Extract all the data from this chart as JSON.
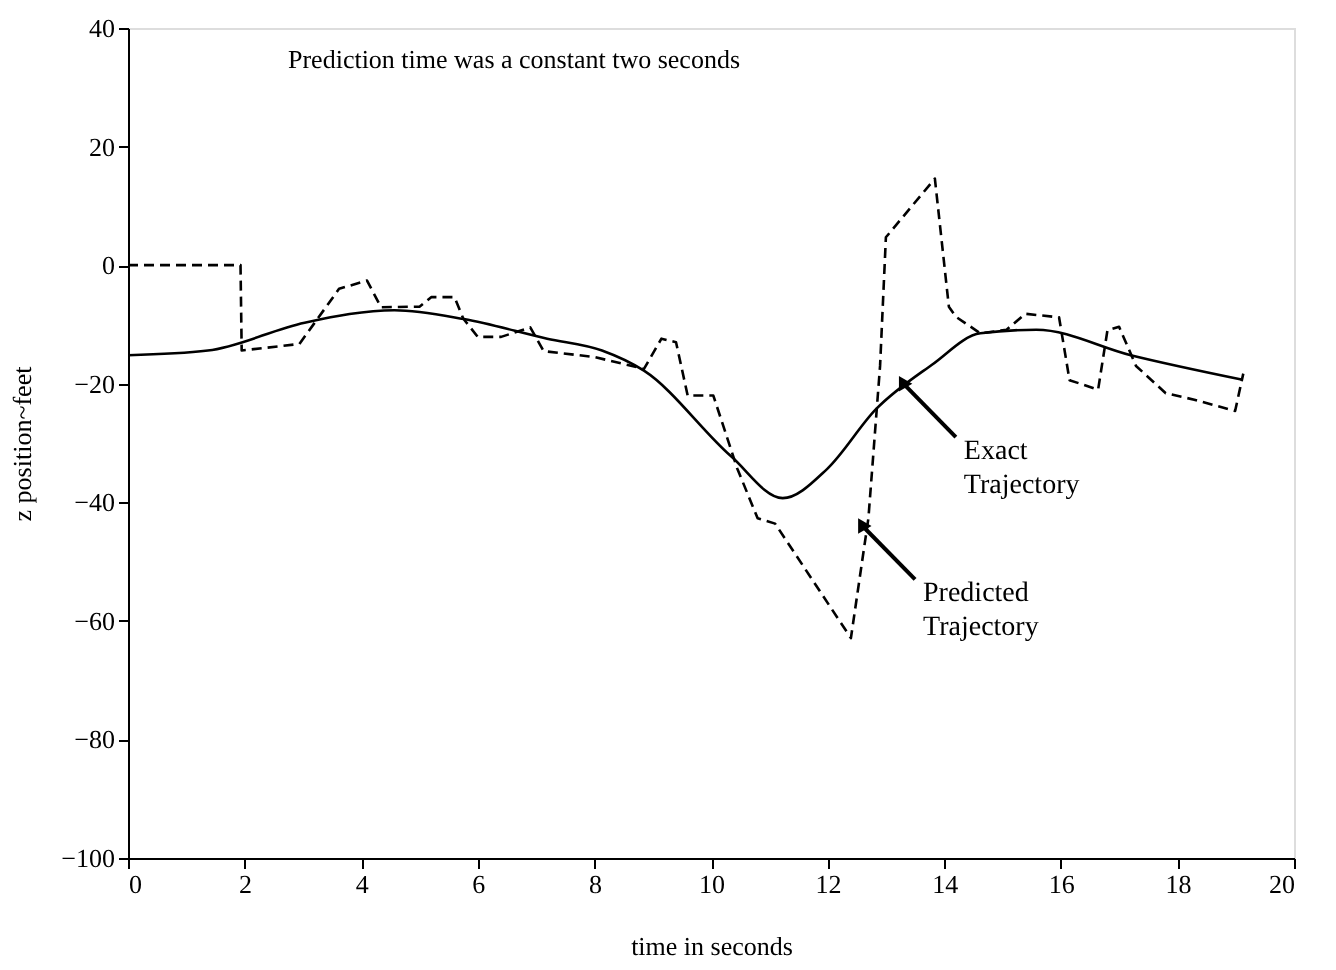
{
  "chart_data": {
    "type": "line",
    "xlabel": "time in seconds",
    "ylabel": "z position~feet",
    "xlim": [
      0,
      20
    ],
    "xticks": [
      0,
      2,
      4,
      6,
      8,
      10,
      12,
      14,
      16,
      18,
      20
    ],
    "ylim": [
      -100,
      40
    ],
    "yticks": [
      -100,
      -80,
      -60,
      -40,
      -20,
      0,
      20,
      40
    ],
    "grid": false,
    "marker": "none",
    "annotations": [
      "Prediction time was a constant two seconds",
      {
        "text": "Exact Trajectory",
        "x": 13.3,
        "y": -20
      },
      {
        "text": "Predicted Trajectory",
        "x": 12.6,
        "y": -44
      }
    ],
    "series": [
      {
        "color": "#000000",
        "line_style": "solid",
        "x": [
          0,
          1.37,
          3.03,
          4.57,
          5.76,
          7.19,
          8.13,
          8.85,
          10.34,
          11.23,
          11.99,
          12.83,
          13.79,
          14.62,
          15.58,
          17.2,
          19.1
        ],
        "values": [
          -15.2,
          -14.4,
          -9.7,
          -7.6,
          -9.1,
          -12.4,
          -14.4,
          -17.8,
          -32.2,
          -39.3,
          -34.4,
          -24.3,
          -16.8,
          -11.5,
          -10.9,
          -15.2,
          -19.3
        ]
      },
      {
        "color": "#000000",
        "line_style": "dashed",
        "x": [
          0,
          1.93,
          1.95,
          2.94,
          3.62,
          4.1,
          4.34,
          5.0,
          5.2,
          5.6,
          5.75,
          6.0,
          6.4,
          6.9,
          7.13,
          8.0,
          8.85,
          9.15,
          9.4,
          9.6,
          10.04,
          10.45,
          10.8,
          11.1,
          12.4,
          12.7,
          12.9,
          13.0,
          13.84,
          14.08,
          14.2,
          14.62,
          15.07,
          15.39,
          15.97,
          16.15,
          16.64,
          16.8,
          17.0,
          17.29,
          17.8,
          18.29,
          18.99,
          19.13
        ],
        "values": [
          0,
          0,
          -14.4,
          -13.3,
          -4,
          -2.6,
          -7.1,
          -7,
          -5.4,
          -5.4,
          -9,
          -12.1,
          -12.1,
          -10.5,
          -14.5,
          -15.5,
          -17.5,
          -12.4,
          -13,
          -22,
          -22,
          -34.3,
          -42.7,
          -43.6,
          -62.9,
          -42.7,
          -17,
          4.7,
          14.6,
          -7,
          -8.7,
          -11.5,
          -10.9,
          -8.2,
          -8.8,
          -19.4,
          -21,
          -11,
          -10.4,
          -17,
          -21.6,
          -22.7,
          -24.6,
          -18.3
        ]
      }
    ]
  }
}
